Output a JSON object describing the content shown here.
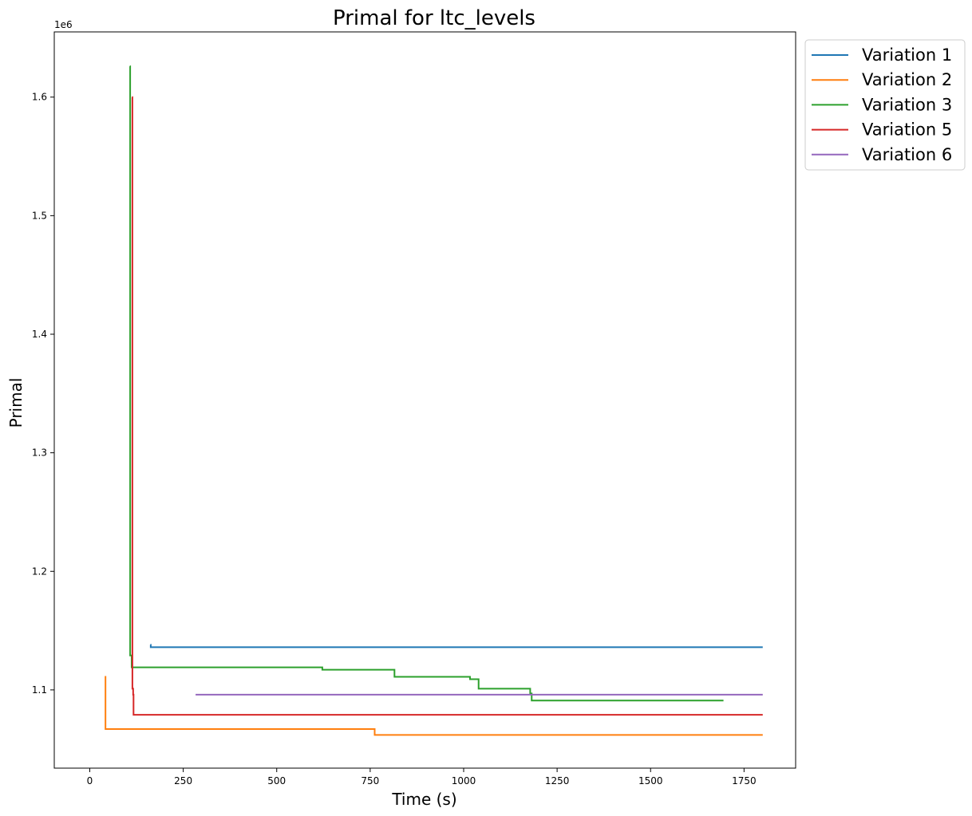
{
  "chart_data": {
    "type": "line",
    "title": "Primal for ltc_levels",
    "xlabel": "Time (s)",
    "ylabel": "Primal",
    "y_offset_label": "1e6",
    "xlim": [
      -95,
      1888
    ],
    "ylim": [
      1034000,
      1655000
    ],
    "x_ticks": [
      0,
      250,
      500,
      750,
      1000,
      1250,
      1500,
      1750
    ],
    "x_tick_labels": [
      "0",
      "250",
      "500",
      "750",
      "1000",
      "1250",
      "1500",
      "1750"
    ],
    "y_ticks": [
      1100000,
      1200000,
      1300000,
      1400000,
      1500000,
      1600000
    ],
    "y_tick_labels": [
      "1.1",
      "1.2",
      "1.3",
      "1.4",
      "1.5",
      "1.6"
    ],
    "grid": false,
    "legend_position": "outside-top-right",
    "step": "post",
    "series": [
      {
        "name": "Variation 1",
        "color": "#1f77b4",
        "x": [
          162,
          163,
          1800
        ],
        "y": [
          1138000,
          1136000,
          1136000
        ]
      },
      {
        "name": "Variation 2",
        "color": "#ff7f0e",
        "x": [
          40,
          42,
          760,
          762,
          1800
        ],
        "y": [
          1111000,
          1067000,
          1067000,
          1062000,
          1062000
        ]
      },
      {
        "name": "Variation 3",
        "color": "#2ca02c",
        "x": [
          107,
          108,
          112,
          622,
          815,
          1017,
          1040,
          1178,
          1182,
          1695
        ],
        "y": [
          1626000,
          1129000,
          1119000,
          1117000,
          1111000,
          1109000,
          1101000,
          1097000,
          1091000,
          1091000
        ]
      },
      {
        "name": "Variation 5",
        "color": "#d62728",
        "x": [
          113,
          114,
          116,
          117,
          1800
        ],
        "y": [
          1600000,
          1101000,
          1096000,
          1079000,
          1079000
        ]
      },
      {
        "name": "Variation 6",
        "color": "#9467bd",
        "x": [
          283,
          1800
        ],
        "y": [
          1096000,
          1096000
        ]
      }
    ]
  }
}
